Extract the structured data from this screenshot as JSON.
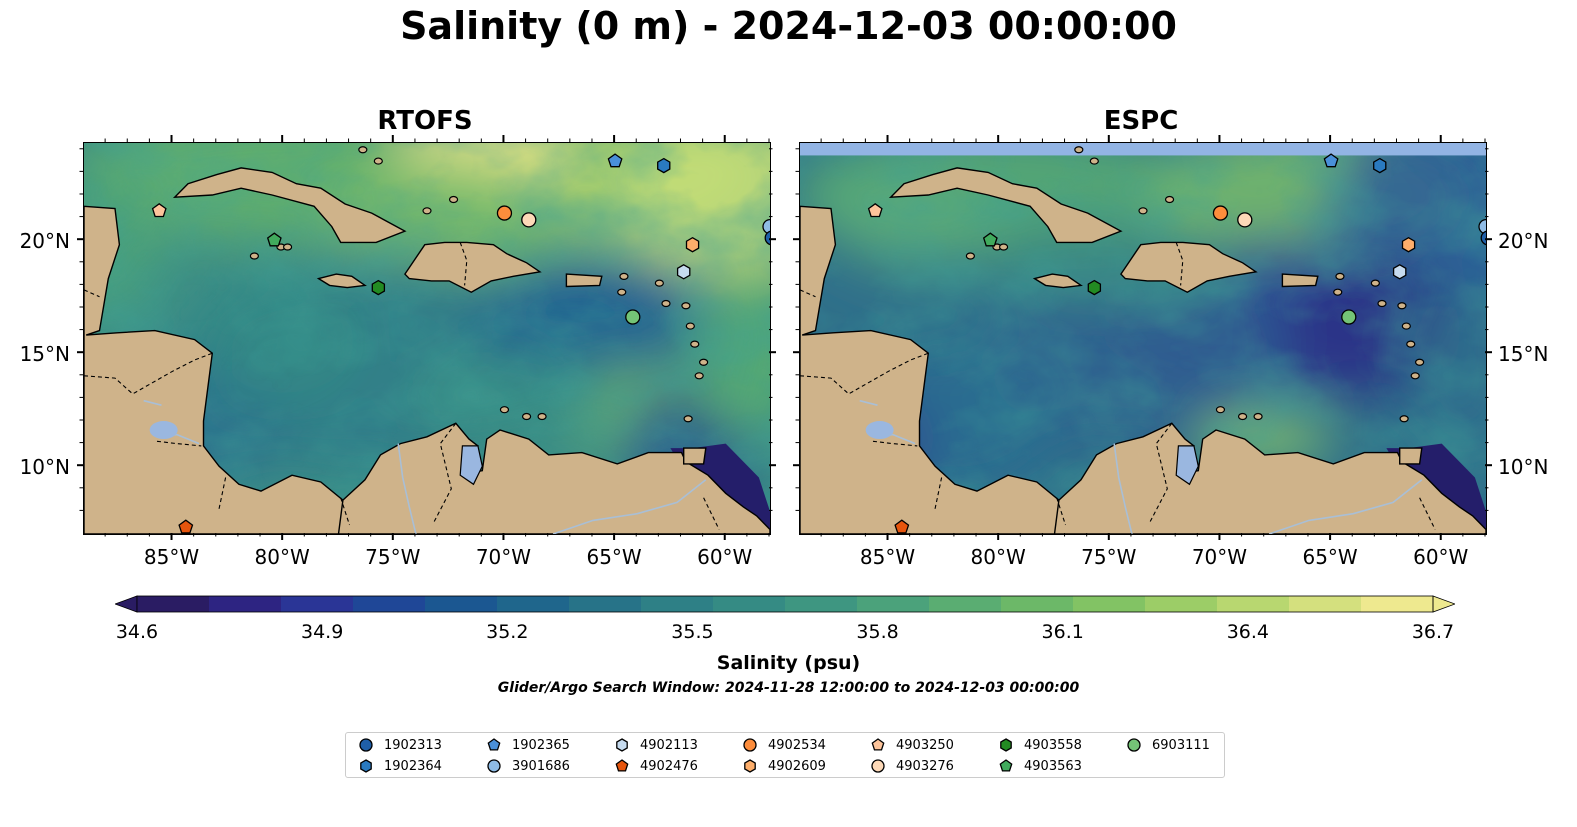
{
  "title": "Salinity (0 m) - 2024-12-03 00:00:00",
  "panels": [
    {
      "title": "RTOFS"
    },
    {
      "title": "ESPC"
    }
  ],
  "axes": {
    "lat_ticks": [
      "20°N",
      "15°N",
      "10°N"
    ],
    "lon_ticks": [
      "85°W",
      "80°W",
      "75°W",
      "70°W",
      "65°W",
      "60°W"
    ]
  },
  "colorbar": {
    "label": "Salinity (psu)",
    "ticks": [
      "34.6",
      "34.9",
      "35.2",
      "35.5",
      "35.8",
      "36.1",
      "36.4",
      "36.7"
    ],
    "range": [
      34.6,
      36.7
    ],
    "colormap": "haline",
    "extend": "both"
  },
  "search_window": "Glider/Argo Search Window: 2024-11-28 12:00:00 to 2024-12-03 00:00:00",
  "colors": {
    "land": "#cfb38a",
    "lakes": "#9ab7e0",
    "rivers": "#a9bfd6",
    "espc_nodata": "#92b4e4"
  },
  "legend": [
    {
      "id": "1902313",
      "marker": "circle",
      "color": "#1f5fa8"
    },
    {
      "id": "1902364",
      "marker": "hexagon",
      "color": "#2a7ac0"
    },
    {
      "id": "1902365",
      "marker": "pentagon",
      "color": "#4a90d9"
    },
    {
      "id": "3901686",
      "marker": "circle",
      "color": "#8fbce6"
    },
    {
      "id": "4902113",
      "marker": "hexagon",
      "color": "#c6dbef"
    },
    {
      "id": "4902476",
      "marker": "pentagon",
      "color": "#e6550d"
    },
    {
      "id": "4902534",
      "marker": "circle",
      "color": "#fd8d3c"
    },
    {
      "id": "4902609",
      "marker": "hexagon",
      "color": "#fdae6b"
    },
    {
      "id": "4903250",
      "marker": "pentagon",
      "color": "#fdc49b"
    },
    {
      "id": "4903276",
      "marker": "circle",
      "color": "#fdd9b8"
    },
    {
      "id": "4903558",
      "marker": "hexagon",
      "color": "#238b22"
    },
    {
      "id": "4903563",
      "marker": "pentagon",
      "color": "#41ab5d"
    },
    {
      "id": "6903111",
      "marker": "circle",
      "color": "#74c476"
    }
  ],
  "floats": [
    {
      "id": "1902365",
      "lon": -65.0,
      "lat": 23.5
    },
    {
      "id": "1902364",
      "lon": -62.8,
      "lat": 23.3
    },
    {
      "id": "4903250",
      "lon": -85.6,
      "lat": 21.3
    },
    {
      "id": "4902534",
      "lon": -70.0,
      "lat": 21.2
    },
    {
      "id": "4903276",
      "lon": -68.9,
      "lat": 20.9
    },
    {
      "id": "3901686",
      "lon": -58.0,
      "lat": 20.6
    },
    {
      "id": "1902313",
      "lon": -57.9,
      "lat": 20.1
    },
    {
      "id": "4903563",
      "lon": -80.4,
      "lat": 20.0
    },
    {
      "id": "4902609",
      "lon": -61.5,
      "lat": 19.8
    },
    {
      "id": "4902113",
      "lon": -61.9,
      "lat": 18.6
    },
    {
      "id": "4903558",
      "lon": -75.7,
      "lat": 17.9
    },
    {
      "id": "6903111",
      "lon": -64.2,
      "lat": 16.6
    },
    {
      "id": "4902476",
      "lon": -84.4,
      "lat": 7.3
    }
  ]
}
